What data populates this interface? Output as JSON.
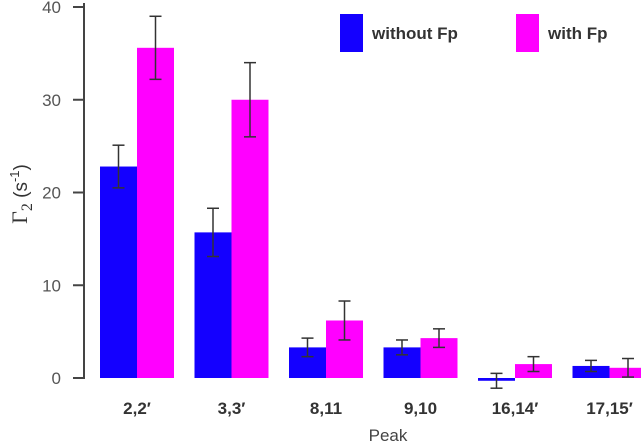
{
  "chart_data": {
    "type": "bar",
    "categories": [
      "2,2′",
      "3,3′",
      "8,11",
      "9,10",
      "16,14′",
      "17,15′"
    ],
    "series": [
      {
        "name": "without Fp",
        "color": "#1400ff",
        "values": [
          22.8,
          15.7,
          3.3,
          3.3,
          -0.3,
          1.3
        ],
        "errors": [
          2.3,
          2.6,
          1.0,
          0.8,
          0.8,
          0.6
        ]
      },
      {
        "name": "with Fp",
        "color": "#ff00ff",
        "values": [
          35.6,
          30.0,
          6.2,
          4.3,
          1.5,
          1.1
        ],
        "errors": [
          3.4,
          4.0,
          2.1,
          1.0,
          0.8,
          1.0
        ]
      }
    ],
    "xlabel": "Peak",
    "ylabel": "Γ",
    "ylabel_subscript": "2",
    "ylabel_unit_prefix": " (s",
    "ylabel_unit_exp": "-1",
    "ylabel_unit_suffix": ")",
    "ylim": [
      0,
      40
    ],
    "yticks": [
      0,
      10,
      20,
      30,
      40
    ],
    "grid": false,
    "legend_position": "top-right"
  }
}
